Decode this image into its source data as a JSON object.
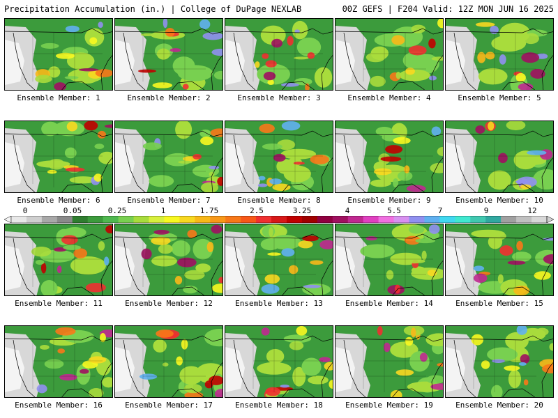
{
  "header": {
    "title": "Precipitation Accumulation (in.) | College of DuPage NEXLAB",
    "run_info": "00Z GEFS | F204 Valid: 12Z MON JUN 16 2025"
  },
  "panels": [
    {
      "label": "Ensemble Member: 1"
    },
    {
      "label": "Ensemble Member: 2"
    },
    {
      "label": "Ensemble Member: 3"
    },
    {
      "label": "Ensemble Member: 4"
    },
    {
      "label": "Ensemble Member: 5"
    },
    {
      "label": "Ensemble Member: 6"
    },
    {
      "label": "Ensemble Member: 7"
    },
    {
      "label": "Ensemble Member: 8"
    },
    {
      "label": "Ensemble Member: 9"
    },
    {
      "label": "Ensemble Member: 10"
    },
    {
      "label": "Ensemble Member: 11"
    },
    {
      "label": "Ensemble Member: 12"
    },
    {
      "label": "Ensemble Member: 13"
    },
    {
      "label": "Ensemble Member: 14"
    },
    {
      "label": "Ensemble Member: 15"
    },
    {
      "label": "Ensemble Member: 16"
    },
    {
      "label": "Ensemble Member: 17"
    },
    {
      "label": "Ensemble Member: 18"
    },
    {
      "label": "Ensemble Member: 19"
    },
    {
      "label": "Ensemble Member: 20"
    }
  ],
  "colorbar": {
    "tick_labels": [
      "0",
      "0.05",
      "0.25",
      "1",
      "1.75",
      "2.5",
      "3.25",
      "4",
      "5.5",
      "7",
      "9",
      "12"
    ],
    "colors": [
      "#e8e8e8",
      "#cfcfcf",
      "#a8a8a8",
      "#8a8a8a",
      "#2f7d2f",
      "#3c9b3c",
      "#4fb84f",
      "#78d050",
      "#a8dc3c",
      "#d8f03c",
      "#f8f820",
      "#f8d820",
      "#f8b818",
      "#f89818",
      "#f87818",
      "#f85818",
      "#f03030",
      "#d81818",
      "#c00000",
      "#a00000",
      "#900040",
      "#a01060",
      "#c02890",
      "#e040c0",
      "#f070e0",
      "#d890f0",
      "#9090f0",
      "#60b0f0",
      "#40d8f0",
      "#40e8d0",
      "#40c8b0",
      "#30a8a0",
      "#a0a0a0",
      "#c0c0c0",
      "#d8d8d8"
    ]
  }
}
